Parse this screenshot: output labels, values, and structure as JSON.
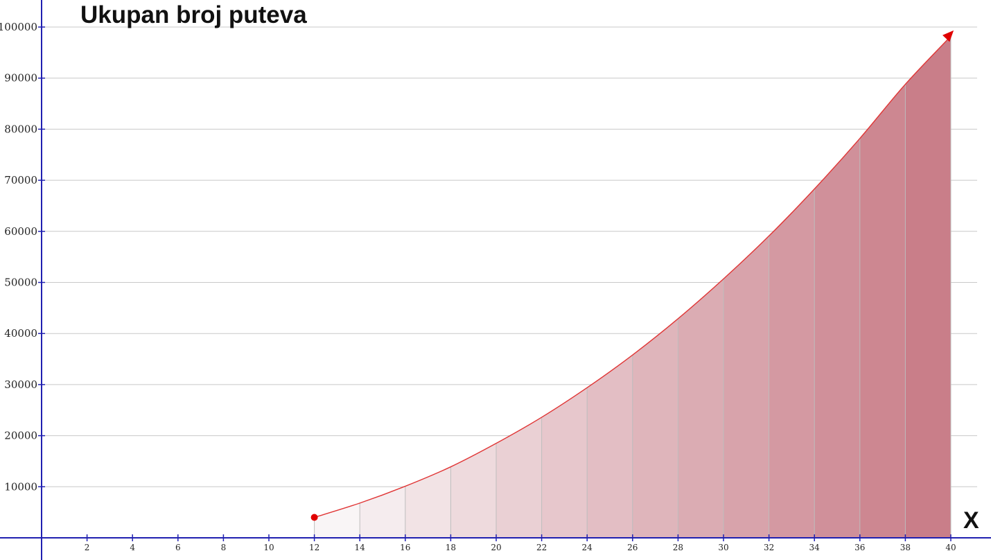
{
  "chart_data": {
    "type": "area",
    "title": "Ukupan broj puteva",
    "xlabel": "X",
    "ylabel": "",
    "xlim": [
      0,
      40
    ],
    "ylim": [
      0,
      100000
    ],
    "x_ticks": [
      2,
      4,
      6,
      8,
      10,
      12,
      14,
      16,
      18,
      20,
      22,
      24,
      26,
      28,
      30,
      32,
      34,
      36,
      38,
      40
    ],
    "y_ticks": [
      10000,
      20000,
      30000,
      40000,
      50000,
      60000,
      70000,
      80000,
      90000,
      100000
    ],
    "grid": true,
    "series": [
      {
        "x": [
          12,
          14,
          16,
          18,
          20,
          22,
          24,
          26,
          28,
          30,
          32,
          34,
          36,
          38,
          40
        ],
        "values": [
          4000,
          6800,
          10100,
          13900,
          18500,
          23600,
          29400,
          35800,
          42900,
          50700,
          59100,
          68300,
          78200,
          88800,
          98200
        ]
      }
    ],
    "start_marker_x": 12,
    "end_arrow_x": 40,
    "colors": {
      "axis": "#2020b0",
      "curve": "#e03535",
      "marker": "#e00000",
      "grid": "#c8c8c8",
      "fill_light": "#f9f5f6",
      "fill_dark": "#c97e89"
    }
  }
}
